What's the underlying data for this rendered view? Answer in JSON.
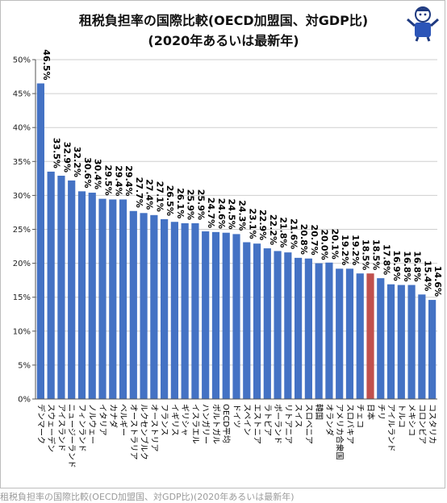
{
  "colors": {
    "bar": "#4472c4",
    "highlight": "#c0504d",
    "grid": "#cfcfcf",
    "axis": "#555555"
  },
  "footer": "租税負担率の国際比較(OECD加盟国、対GDP比)(2020年あるいは最新年)",
  "mascot": {
    "icon": "mascot-figure-icon"
  },
  "chart_data": {
    "type": "bar",
    "title": "租税負担率の国際比較(OECD加盟国、対GDP比)",
    "subtitle": "(2020年あるいは最新年)",
    "xlabel": "",
    "ylabel": "",
    "ylim": [
      0,
      50
    ],
    "yticks": [
      "0%",
      "5%",
      "10%",
      "15%",
      "20%",
      "25%",
      "30%",
      "35%",
      "40%",
      "45%",
      "50%"
    ],
    "grid": true,
    "highlight": [
      "日本"
    ],
    "categories": [
      "デンマーク",
      "スウェーデン",
      "アイスランド",
      "ニュージーランド",
      "フィンランド",
      "ノルウェー",
      "イタリア",
      "カナダ",
      "ベルギー",
      "オーストラリア",
      "ルクセンブルク",
      "オーストリア",
      "フランス",
      "イギリス",
      "ギリシャ",
      "イスラエル",
      "ハンガリー",
      "ポルトガル",
      "OECD平均",
      "ドイツ",
      "スペイン",
      "エストニア",
      "ラトビア",
      "ポーランド",
      "リトアニア",
      "スイス",
      "スロベニア",
      "韓国",
      "オランダ",
      "アメリカ合衆国",
      "スロバキア",
      "チェコ",
      "日本",
      "チリ",
      "アイルランド",
      "トルコ",
      "メキシコ",
      "コロンビア",
      "コスタリカ"
    ],
    "labels": [
      "46.5%",
      "33.5%",
      "32.9%",
      "32.2%",
      "30.6%",
      "30.4%",
      "29.5%",
      "29.4%",
      "29.4%",
      "27.7%",
      "27.4%",
      "27.1%",
      "26.5%",
      "26.1%",
      "25.9%",
      "25.9%",
      "24.7%",
      "24.6%",
      "24.5%",
      "24.3%",
      "23.1%",
      "22.9%",
      "22.2%",
      "21.8%",
      "21.6%",
      "20.8%",
      "20.7%",
      "20.0%",
      "20.1%",
      "19.2%",
      "19.2%",
      "18.5%",
      "18.5%",
      "17.8%",
      "16.9%",
      "16.8%",
      "16.8%",
      "15.4%",
      "14.6%"
    ],
    "values": [
      46.5,
      33.5,
      32.9,
      32.2,
      30.6,
      30.4,
      29.5,
      29.4,
      29.4,
      27.7,
      27.4,
      27.1,
      26.5,
      26.1,
      25.9,
      25.9,
      24.7,
      24.6,
      24.5,
      24.3,
      23.1,
      22.9,
      22.2,
      21.8,
      21.6,
      20.8,
      20.7,
      20.0,
      20.1,
      19.2,
      19.2,
      18.5,
      18.5,
      17.8,
      16.9,
      16.8,
      16.8,
      15.4,
      14.6
    ]
  }
}
